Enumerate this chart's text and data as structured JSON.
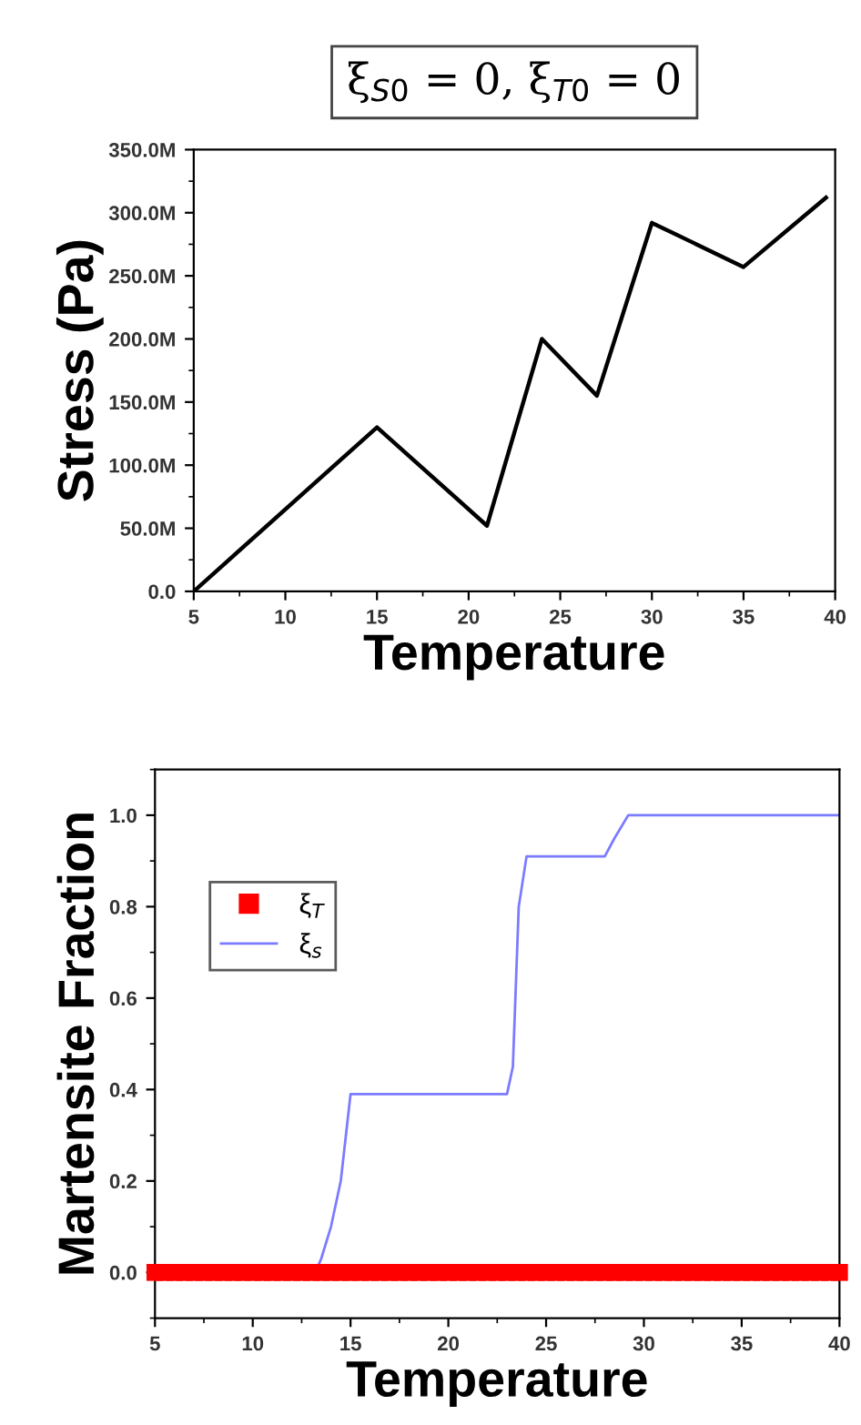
{
  "chart_data": [
    {
      "type": "line",
      "title": "ξ$_{S0}$ = 0, ξ$_{T0}$ = 0",
      "xlabel": "Temperature",
      "ylabel": "Stress (Pa)",
      "x": [
        5,
        15,
        21,
        24,
        27,
        30,
        35,
        39.5
      ],
      "series": [
        {
          "color": "#000000",
          "values": [
            0,
            130000000,
            52000000,
            200000000,
            155000000,
            292000000,
            257000000,
            312000000
          ]
        }
      ],
      "xlim": [
        5,
        40
      ],
      "xticks": [
        5,
        10,
        15,
        20,
        25,
        30,
        35,
        40
      ],
      "ylim": [
        0,
        350000000
      ],
      "yticks": [
        {
          "value": 0,
          "label": "0.0"
        },
        {
          "value": 50000000,
          "label": "50.0M"
        },
        {
          "value": 100000000,
          "label": "100.0M"
        },
        {
          "value": 150000000,
          "label": "150.0M"
        },
        {
          "value": 200000000,
          "label": "200.0M"
        },
        {
          "value": 250000000,
          "label": "250.0M"
        },
        {
          "value": 300000000,
          "label": "300.0M"
        },
        {
          "value": 350000000,
          "label": "350.0M"
        }
      ],
      "grid": false,
      "legend": false,
      "marker": "none",
      "line_style": "solid"
    },
    {
      "type": "line",
      "xlabel": "Temperature",
      "ylabel": "Martensite Fraction",
      "series": [
        {
          "name": "ξ$_{T}$",
          "type": "scatter",
          "marker": "square",
          "color": "#ff0000",
          "x": [
            5,
            5.5,
            6,
            6.5,
            7,
            7.5,
            8,
            8.5,
            9,
            9.5,
            10,
            10.5,
            11,
            11.5,
            12,
            12.5,
            13,
            13.5,
            14,
            14.5,
            15,
            15.5,
            16,
            16.5,
            17,
            17.5,
            18,
            18.5,
            19,
            19.5,
            20,
            20.5,
            21,
            21.5,
            22,
            22.5,
            23,
            23.5,
            24,
            24.5,
            25,
            25.5,
            26,
            26.5,
            27,
            27.5,
            28,
            28.5,
            29,
            29.5,
            30,
            30.5,
            31,
            31.5,
            32,
            32.5,
            33,
            33.5,
            34,
            34.5,
            35,
            35.5,
            36,
            36.5,
            37,
            37.5,
            38,
            38.5,
            39,
            39.5,
            40
          ],
          "values": [
            0,
            0,
            0,
            0,
            0,
            0,
            0,
            0,
            0,
            0,
            0,
            0,
            0,
            0,
            0,
            0,
            0,
            0,
            0,
            0,
            0,
            0,
            0,
            0,
            0,
            0,
            0,
            0,
            0,
            0,
            0,
            0,
            0,
            0,
            0,
            0,
            0,
            0,
            0,
            0,
            0,
            0,
            0,
            0,
            0,
            0,
            0,
            0,
            0,
            0,
            0,
            0,
            0,
            0,
            0,
            0,
            0,
            0,
            0,
            0,
            0,
            0,
            0,
            0,
            0,
            0,
            0,
            0,
            0,
            0,
            0
          ]
        },
        {
          "name": "ξ$_{s}$",
          "marker": "none",
          "color": "#7b7bff",
          "x": [
            13.2,
            13.5,
            14,
            14.5,
            15,
            23,
            23.3,
            23.6,
            24,
            28,
            28.5,
            29.2,
            40
          ],
          "values": [
            0,
            0.03,
            0.1,
            0.2,
            0.39,
            0.39,
            0.45,
            0.8,
            0.91,
            0.91,
            0.95,
            1.0,
            1.0
          ]
        }
      ],
      "xlim": [
        5,
        40
      ],
      "xticks": [
        5,
        10,
        15,
        20,
        25,
        30,
        35,
        40
      ],
      "ylim": [
        -0.1,
        1.1
      ],
      "yticks": [
        {
          "value": 0,
          "label": "0.0"
        },
        {
          "value": 0.2,
          "label": "0.2"
        },
        {
          "value": 0.4,
          "label": "0.4"
        },
        {
          "value": 0.6,
          "label": "0.6"
        },
        {
          "value": 0.8,
          "label": "0.8"
        },
        {
          "value": 1.0,
          "label": "1.0"
        }
      ],
      "grid": false,
      "legend": "top left",
      "line_style": "solid"
    }
  ]
}
